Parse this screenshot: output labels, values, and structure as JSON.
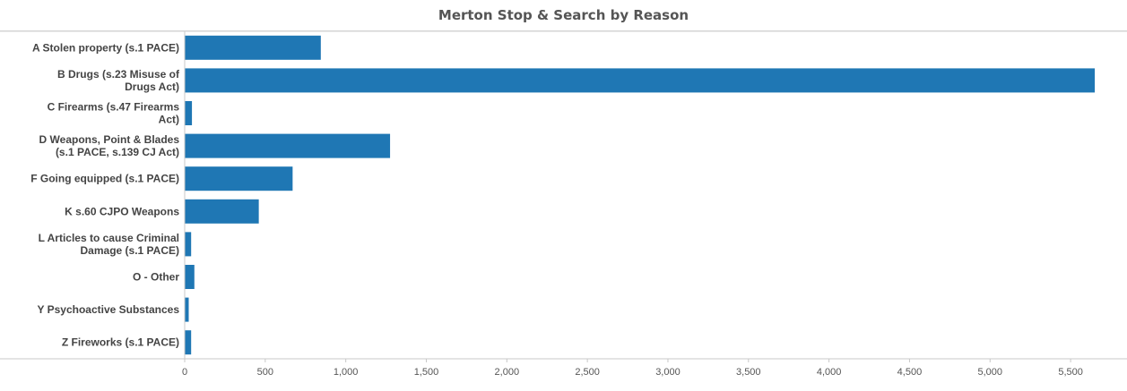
{
  "chart_data": {
    "type": "bar",
    "orientation": "horizontal",
    "title": "Merton Stop & Search by Reason",
    "xlabel": "",
    "ylabel": "",
    "categories": [
      [
        "A Stolen property (s.1 PACE)"
      ],
      [
        "B Drugs (s.23 Misuse of",
        "Drugs Act)"
      ],
      [
        "C Firearms (s.47 Firearms",
        "Act)"
      ],
      [
        "D Weapons, Point & Blades",
        "(s.1 PACE, s.139 CJ Act)"
      ],
      [
        "F Going equipped (s.1 PACE)"
      ],
      [
        "K s.60 CJPO Weapons"
      ],
      [
        "L Articles to cause Criminal",
        "Damage (s.1 PACE)"
      ],
      [
        "O - Other"
      ],
      [
        "Y Psychoactive Substances"
      ],
      [
        "Z Fireworks (s.1 PACE)"
      ]
    ],
    "values": [
      845,
      5650,
      45,
      1275,
      670,
      460,
      40,
      60,
      25,
      40
    ],
    "xlim": [
      0,
      5800
    ],
    "xticks": [
      0,
      500,
      1000,
      1500,
      2000,
      2500,
      3000,
      3500,
      4000,
      4500,
      5000,
      5500
    ],
    "xtick_labels": [
      "0",
      "500",
      "1,000",
      "1,500",
      "2,000",
      "2,500",
      "3,000",
      "3,500",
      "4,000",
      "4,500",
      "5,000",
      "5,500"
    ],
    "bar_color": "#1f77b4",
    "grid": false
  }
}
